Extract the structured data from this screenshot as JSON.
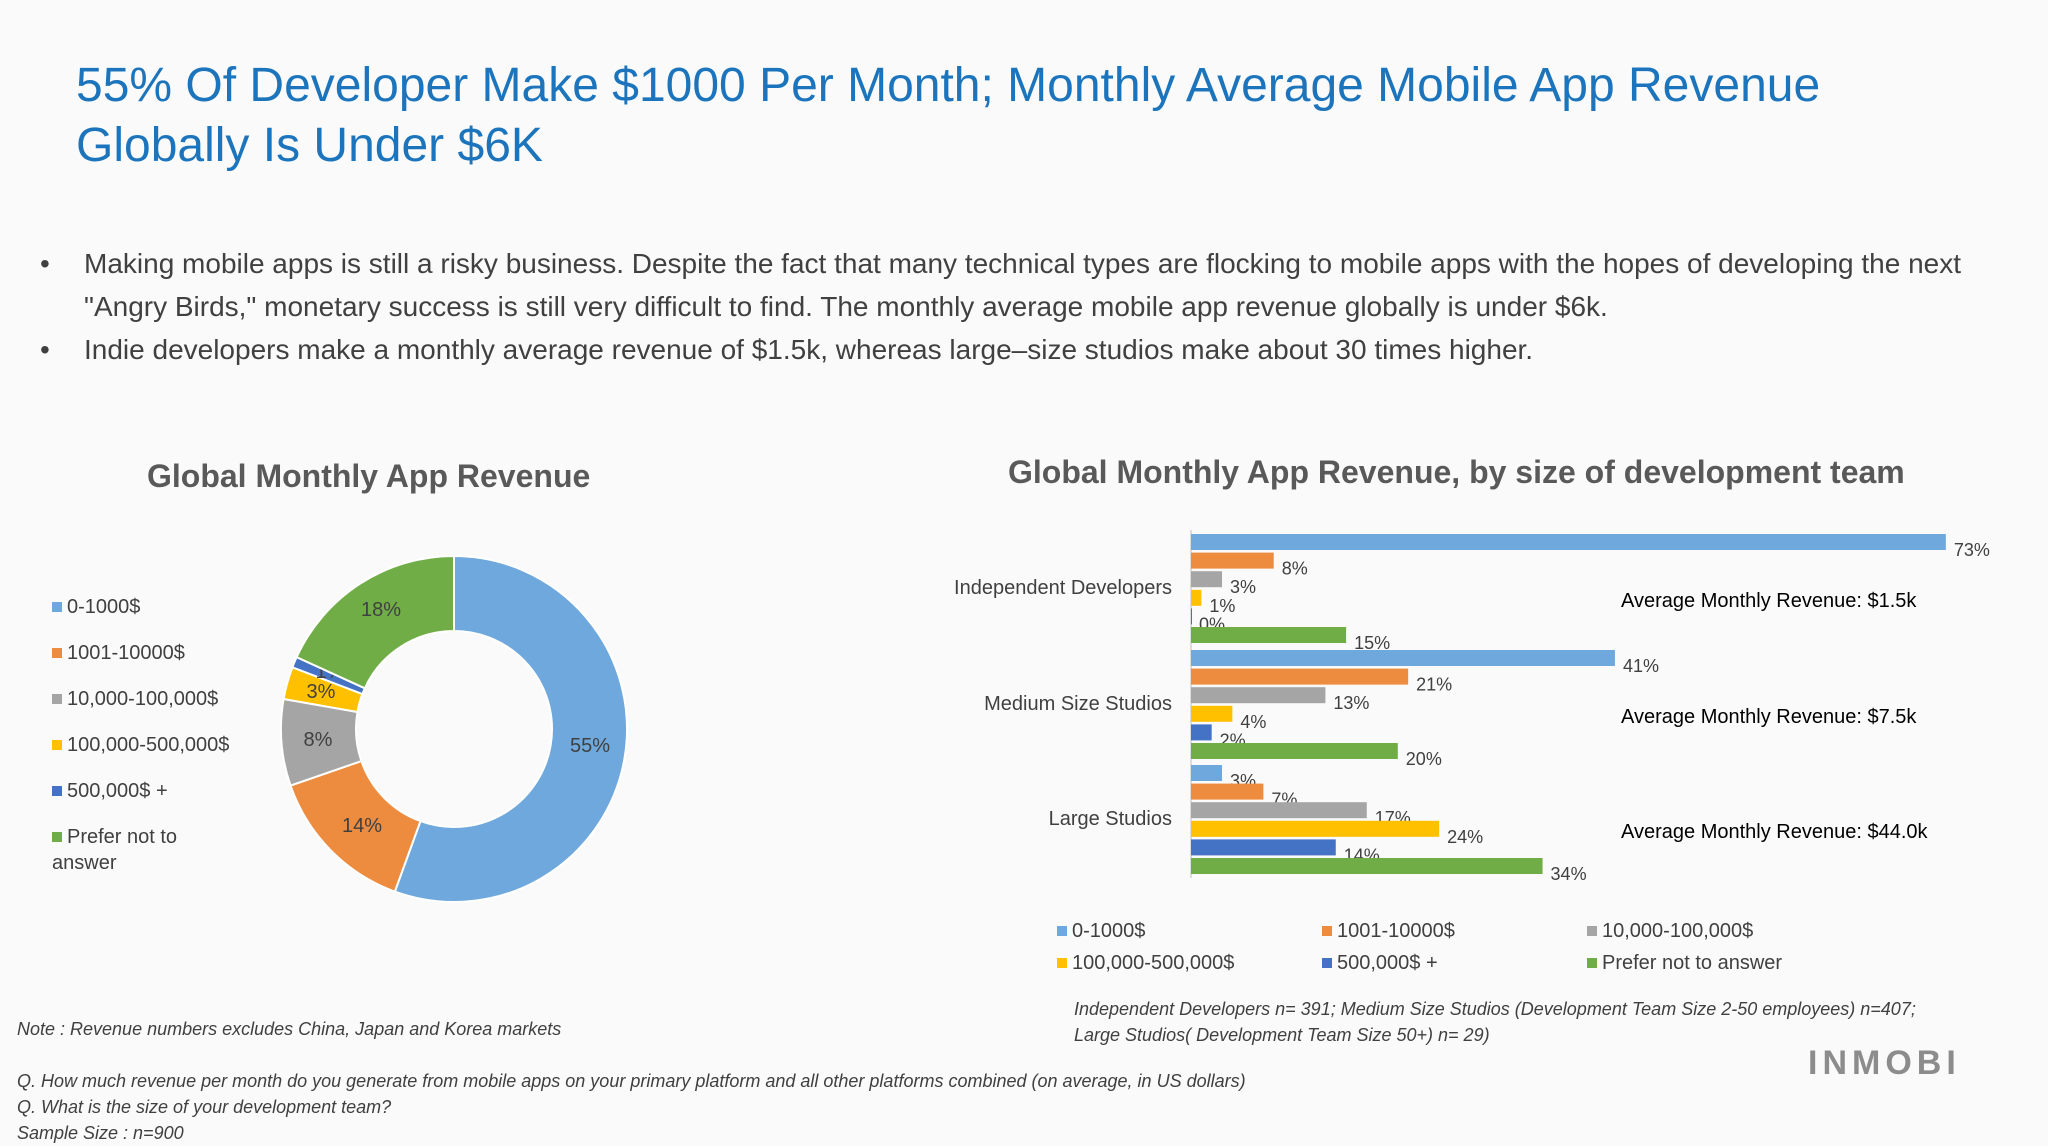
{
  "title": "55% Of Developer Make $1000 Per Month; Monthly Average Mobile App Revenue Globally Is Under $6K",
  "bullets": [
    "Making mobile apps is still a risky business. Despite the fact that many technical types are flocking to mobile apps with the hopes of developing the next \"Angry Birds,\" monetary success is still very difficult to find. The monthly average mobile app revenue globally is under $6k.",
    "Indie developers make a monthly average revenue of $1.5k, whereas large–size studios make about 30 times higher."
  ],
  "bullet_symbol": "•",
  "colors": {
    "title": "#1c75bc",
    "blue": "#6fa8dc",
    "orange": "#ed8b3e",
    "gray": "#a5a5a5",
    "yellow": "#ffc000",
    "darkblue": "#4472c4",
    "green": "#70ad47"
  },
  "chart_data": [
    {
      "type": "pie",
      "title": "Global Monthly App Revenue",
      "categories": [
        "0-1000$",
        "1001-10000$",
        "10,000-100,000$",
        "100,000-500,000$",
        "500,000$ +",
        "Prefer not to answer"
      ],
      "values": [
        55,
        14,
        8,
        3,
        1,
        18
      ],
      "labels": [
        "55%",
        "14%",
        "8%",
        "3%",
        "1%",
        "18%"
      ],
      "colors": [
        "#6fa8dc",
        "#ed8b3e",
        "#a5a5a5",
        "#ffc000",
        "#4472c4",
        "#70ad47"
      ],
      "donut": true,
      "legend": "left"
    },
    {
      "type": "bar",
      "orientation": "horizontal",
      "title": "Global Monthly App Revenue, by size of development team",
      "categories": [
        "Independent Developers",
        "Medium Size Studios",
        "Large Studios"
      ],
      "series": [
        {
          "name": "0-1000$",
          "color": "#6fa8dc",
          "values": [
            73,
            41,
            3
          ]
        },
        {
          "name": "1001-10000$",
          "color": "#ed8b3e",
          "values": [
            8,
            21,
            7
          ]
        },
        {
          "name": "10,000-100,000$",
          "color": "#a5a5a5",
          "values": [
            3,
            13,
            17
          ]
        },
        {
          "name": "100,000-500,000$",
          "color": "#ffc000",
          "values": [
            1,
            4,
            24
          ]
        },
        {
          "name": "500,000$ +",
          "color": "#4472c4",
          "values": [
            0,
            2,
            14
          ]
        },
        {
          "name": "Prefer not to answer",
          "color": "#70ad47",
          "values": [
            15,
            20,
            34
          ]
        }
      ],
      "unit": "%",
      "annotations": [
        "Average Monthly Revenue: $1.5k",
        "Average Monthly Revenue: $7.5k",
        "Average Monthly Revenue: $44.0k"
      ],
      "legend": "bottom"
    }
  ],
  "notes": {
    "left": "Note : Revenue numbers excludes China, Japan and Korea markets",
    "right_line1": "Independent Developers n= 391;  Medium Size Studios (Development Team Size 2-50 employees) n=407;",
    "right_line2": "Large Studios( Development Team Size 50+) n= 29)",
    "q1": "Q. How much revenue per month do you generate from mobile apps on your primary platform and all other platforms combined (on average, in US dollars)",
    "q2": "Q. What is the size of your development team?",
    "sample": "Sample Size : n=900"
  },
  "logo": "INMOBI"
}
